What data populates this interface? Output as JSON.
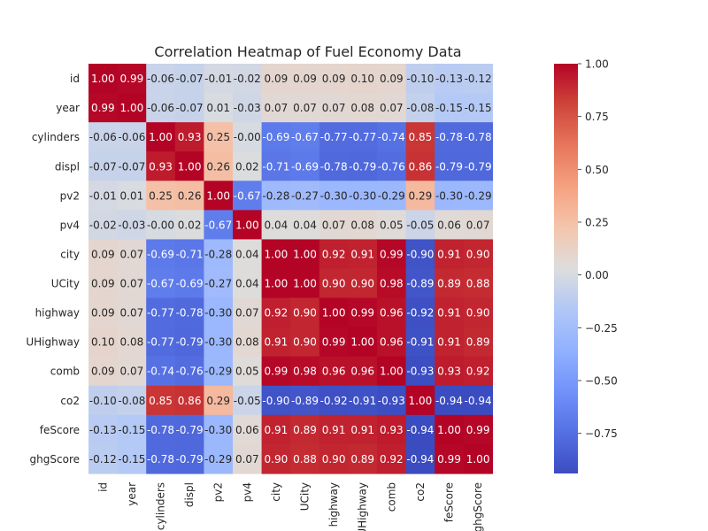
{
  "chart_data": {
    "type": "heatmap",
    "title": "Correlation Heatmap of Fuel Economy Data",
    "variables": [
      "id",
      "year",
      "cylinders",
      "displ",
      "pv2",
      "pv4",
      "city",
      "UCity",
      "highway",
      "UHighway",
      "comb",
      "co2",
      "feScore",
      "ghgScore"
    ],
    "matrix": [
      [
        1.0,
        0.99,
        -0.06,
        -0.07,
        -0.01,
        -0.02,
        0.09,
        0.09,
        0.09,
        0.1,
        0.09,
        -0.1,
        -0.13,
        -0.12
      ],
      [
        0.99,
        1.0,
        -0.06,
        -0.07,
        0.01,
        -0.03,
        0.07,
        0.07,
        0.07,
        0.08,
        0.07,
        -0.08,
        -0.15,
        -0.15
      ],
      [
        -0.06,
        -0.06,
        1.0,
        0.93,
        0.25,
        -0.0,
        -0.69,
        -0.67,
        -0.77,
        -0.77,
        -0.74,
        0.85,
        -0.78,
        -0.78
      ],
      [
        -0.07,
        -0.07,
        0.93,
        1.0,
        0.26,
        0.02,
        -0.71,
        -0.69,
        -0.78,
        -0.79,
        -0.76,
        0.86,
        -0.79,
        -0.79
      ],
      [
        -0.01,
        0.01,
        0.25,
        0.26,
        1.0,
        -0.67,
        -0.28,
        -0.27,
        -0.3,
        -0.3,
        -0.29,
        0.29,
        -0.3,
        -0.29
      ],
      [
        -0.02,
        -0.03,
        -0.0,
        0.02,
        -0.67,
        1.0,
        0.04,
        0.04,
        0.07,
        0.08,
        0.05,
        -0.05,
        0.06,
        0.07
      ],
      [
        0.09,
        0.07,
        -0.69,
        -0.71,
        -0.28,
        0.04,
        1.0,
        1.0,
        0.92,
        0.91,
        0.99,
        -0.9,
        0.91,
        0.9
      ],
      [
        0.09,
        0.07,
        -0.67,
        -0.69,
        -0.27,
        0.04,
        1.0,
        1.0,
        0.9,
        0.9,
        0.98,
        -0.89,
        0.89,
        0.88
      ],
      [
        0.09,
        0.07,
        -0.77,
        -0.78,
        -0.3,
        0.07,
        0.92,
        0.9,
        1.0,
        0.99,
        0.96,
        -0.92,
        0.91,
        0.9
      ],
      [
        0.1,
        0.08,
        -0.77,
        -0.79,
        -0.3,
        0.08,
        0.91,
        0.9,
        0.99,
        1.0,
        0.96,
        -0.91,
        0.91,
        0.89
      ],
      [
        0.09,
        0.07,
        -0.74,
        -0.76,
        -0.29,
        0.05,
        0.99,
        0.98,
        0.96,
        0.96,
        1.0,
        -0.93,
        0.93,
        0.92
      ],
      [
        -0.1,
        -0.08,
        0.85,
        0.86,
        0.29,
        -0.05,
        -0.9,
        -0.89,
        -0.92,
        -0.91,
        -0.93,
        1.0,
        -0.94,
        -0.94
      ],
      [
        -0.13,
        -0.15,
        -0.78,
        -0.79,
        -0.3,
        0.06,
        0.91,
        0.89,
        0.91,
        0.91,
        0.93,
        -0.94,
        1.0,
        0.99
      ],
      [
        -0.12,
        -0.15,
        -0.78,
        -0.79,
        -0.29,
        0.07,
        0.9,
        0.88,
        0.9,
        0.89,
        0.92,
        -0.94,
        0.99,
        1.0
      ]
    ],
    "colormap": "coolwarm",
    "colorbar": {
      "vmin": -0.94,
      "vmax": 1.0,
      "ticks": [
        1.0,
        0.75,
        0.5,
        0.25,
        0.0,
        -0.25,
        -0.5,
        -0.75
      ],
      "tick_labels": [
        "1.00",
        "0.75",
        "0.50",
        "0.25",
        "0.00",
        "−0.25",
        "−0.50",
        "−0.75"
      ]
    },
    "annotate": true,
    "grid": false,
    "legend": "colorbar-right"
  }
}
